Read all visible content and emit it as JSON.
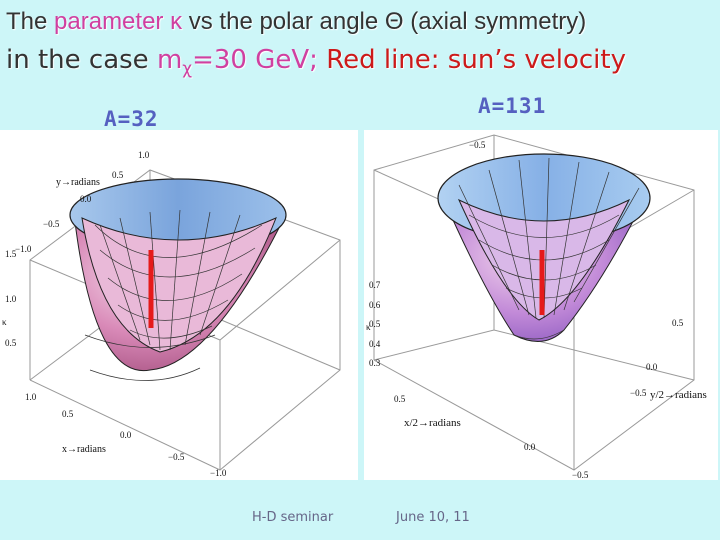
{
  "header": {
    "line1_pre": "The ",
    "line1_param": "parameter κ",
    "line1_post": " vs the polar angle Θ (axial symmetry)",
    "line2_pre": "in the case ",
    "line2_m": "m",
    "line2_chi": "χ",
    "line2_mass": "=30 GeV; ",
    "line2_red": "Red line: sun’s velocity"
  },
  "panels": {
    "left_label": "A=32",
    "right_label": "A=131",
    "left": {
      "y_axis_label": "y→radians",
      "x_axis_label": "x→radians",
      "kappa_label": "κ",
      "y_ticks": [
        "1.0",
        "0.5",
        "0.0",
        "−0.5",
        "−1.0"
      ],
      "z_ticks": [
        "1.5",
        "1.0",
        "0.5"
      ],
      "x_ticks": [
        "1.0",
        "0.5",
        "0.0",
        "−0.5",
        "−1.0"
      ]
    },
    "right": {
      "y_axis_label": "y/2→radians",
      "x_axis_label": "x/2→radians",
      "kappa_label": "κ",
      "z_ticks": [
        "0.7",
        "0.6",
        "0.5",
        "0.4",
        "0.3"
      ],
      "top_tick": "−0.5",
      "right_tick": "0.5",
      "x_ticks": [
        "0.5",
        "0.0",
        "−0.5"
      ],
      "y_ticks": [
        "0.0",
        "−0.5"
      ]
    }
  },
  "footer": {
    "seminar": "H-D seminar",
    "date": "June 10, 11"
  },
  "colors": {
    "background": "#cdf6f8",
    "accent_pink": "#d040a0",
    "accent_red": "#cc1a1a",
    "label_blue": "#5560c0"
  }
}
